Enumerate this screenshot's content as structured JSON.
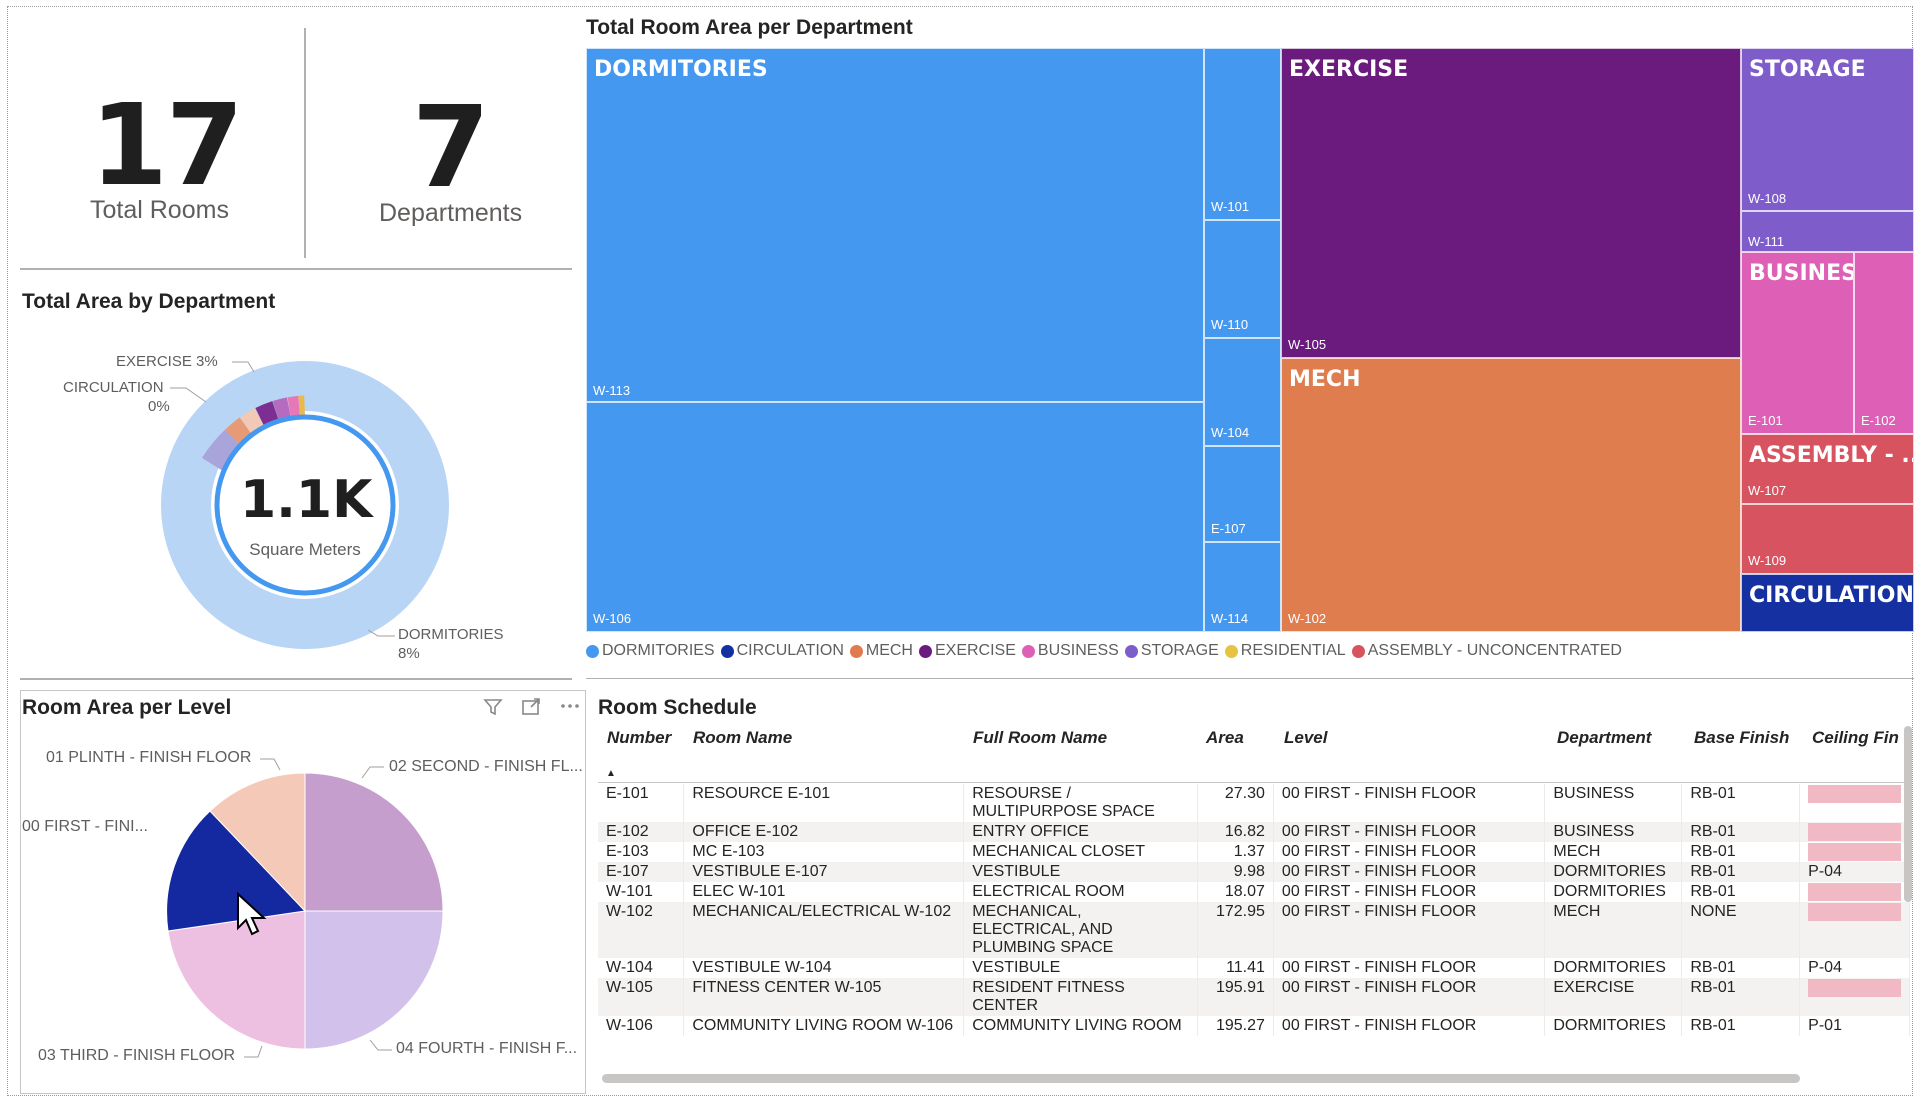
{
  "kpis": {
    "rooms_value": "17",
    "rooms_label": "Total Rooms",
    "depts_value": "7",
    "depts_label": "Departments"
  },
  "donut": {
    "title": "Total Area by Department",
    "center_value": "1.1K",
    "center_label": "Square Meters",
    "labels": {
      "exercise": "EXERCISE 3%",
      "circulation_1": "CIRCULATION",
      "circulation_2": "0%",
      "dormitories_1": "DORMITORIES",
      "dormitories_2": "8%"
    }
  },
  "treemap": {
    "title": "Total Room Area per Department",
    "departments": {
      "dormitories": "DORMITORIES",
      "exercise": "EXERCISE",
      "storage": "STORAGE",
      "business": "BUSINESS",
      "mech": "MECH",
      "assembly": "ASSEMBLY - ...",
      "circulation": "CIRCULATION"
    },
    "rooms": {
      "w113": "W-113",
      "w106": "W-106",
      "w101": "W-101",
      "w110": "W-110",
      "w104": "W-104",
      "e107": "E-107",
      "w114": "W-114",
      "w105": "W-105",
      "w102": "W-102",
      "w108": "W-108",
      "w111": "W-111",
      "e101": "E-101",
      "e102": "E-102",
      "w107": "W-107",
      "w109": "W-109"
    }
  },
  "legend": [
    {
      "label": "DORMITORIES",
      "color": "#4598f0"
    },
    {
      "label": "CIRCULATION",
      "color": "#1530a0"
    },
    {
      "label": "MECH",
      "color": "#e07a4f"
    },
    {
      "label": "EXERCISE",
      "color": "#6a1b7e"
    },
    {
      "label": "BUSINESS",
      "color": "#dd5fb6"
    },
    {
      "label": "STORAGE",
      "color": "#7e5cc9"
    },
    {
      "label": "RESIDENTIAL",
      "color": "#e8c33f"
    },
    {
      "label": "ASSEMBLY - UNCONCENTRATED",
      "color": "#d7535f"
    }
  ],
  "pie": {
    "title": "Room Area per Level",
    "labels": {
      "plinth": "01 PLINTH - FINISH FLOOR",
      "second": "02 SECOND - FINISH FL...",
      "first": "00 FIRST - FINI...",
      "third": "03 THIRD - FINISH FLOOR",
      "fourth": "04 FOURTH - FINISH F..."
    }
  },
  "schedule": {
    "title": "Room Schedule",
    "headers": [
      "Number",
      "Room Name",
      "Full Room Name",
      "Area",
      "Level",
      "Department",
      "Base Finish",
      "Ceiling Fin"
    ],
    "rows": [
      [
        "E-101",
        "RESOURCE E-101",
        "RESOURSE / MULTIPURPOSE SPACE",
        "27.30",
        "00 FIRST - FINISH FLOOR",
        "BUSINESS",
        "RB-01",
        ""
      ],
      [
        "E-102",
        "OFFICE E-102",
        "ENTRY OFFICE",
        "16.82",
        "00 FIRST - FINISH FLOOR",
        "BUSINESS",
        "RB-01",
        ""
      ],
      [
        "E-103",
        "MC E-103",
        "MECHANICAL CLOSET",
        "1.37",
        "00 FIRST - FINISH FLOOR",
        "MECH",
        "RB-01",
        ""
      ],
      [
        "E-107",
        "VESTIBULE E-107",
        "VESTIBULE",
        "9.98",
        "00 FIRST - FINISH FLOOR",
        "DORMITORIES",
        "RB-01",
        "P-04"
      ],
      [
        "W-101",
        "ELEC W-101",
        "ELECTRICAL ROOM",
        "18.07",
        "00 FIRST - FINISH FLOOR",
        "DORMITORIES",
        "RB-01",
        ""
      ],
      [
        "W-102",
        "MECHANICAL/ELECTRICAL W-102",
        "MECHANICAL, ELECTRICAL, AND PLUMBING SPACE",
        "172.95",
        "00 FIRST - FINISH FLOOR",
        "MECH",
        "NONE",
        ""
      ],
      [
        "W-104",
        "VESTIBULE W-104",
        "VESTIBULE",
        "11.41",
        "00 FIRST - FINISH FLOOR",
        "DORMITORIES",
        "RB-01",
        "P-04"
      ],
      [
        "W-105",
        "FITNESS CENTER W-105",
        "RESIDENT FITNESS CENTER",
        "195.91",
        "00 FIRST - FINISH FLOOR",
        "EXERCISE",
        "RB-01",
        ""
      ],
      [
        "W-106",
        "COMMUNITY LIVING ROOM W-106",
        "COMMUNITY LIVING ROOM",
        "195.27",
        "00 FIRST - FINISH FLOOR",
        "DORMITORIES",
        "RB-01",
        "P-01"
      ]
    ]
  }
}
